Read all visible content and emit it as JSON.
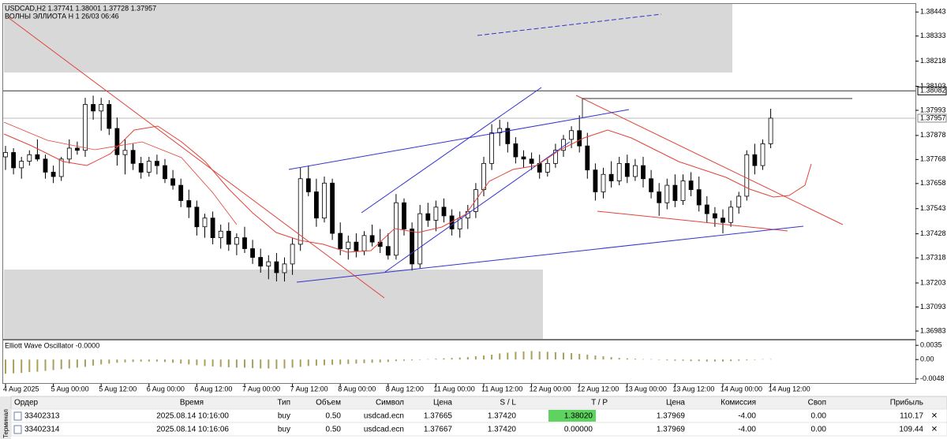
{
  "header": {
    "symbol_line": "USDCAD,H2  1.37741 1.38001 1.37728 1.37957",
    "indicator": "ВОЛНЫ ЭЛЛИОТА Н 1 26/03 06:46"
  },
  "price_axis": {
    "ylim": [
      1.36947,
      1.38469
    ],
    "ticks": [
      1.38443,
      1.38333,
      1.38218,
      1.38103,
      1.37993,
      1.37878,
      1.37768,
      1.37658,
      1.37543,
      1.37428,
      1.37318,
      1.37203,
      1.37093,
      1.36983
    ],
    "markers": [
      1.38082,
      1.37957
    ]
  },
  "time_axis": [
    "4 Aug 2025",
    "5 Aug 00:00",
    "5 Aug 12:00",
    "6 Aug 00:00",
    "6 Aug 12:00",
    "7 Aug 00:00",
    "7 Aug 12:00",
    "8 Aug 00:00",
    "8 Aug 12:00",
    "11 Aug 00:00",
    "11 Aug 12:00",
    "12 Aug 00:00",
    "12 Aug 12:00",
    "13 Aug 00:00",
    "13 Aug 12:00",
    "14 Aug 00:00",
    "14 Aug 12:00"
  ],
  "candles": [
    [
      1.3778,
      1.3783,
      1.3772,
      1.378
    ],
    [
      1.378,
      1.3782,
      1.377,
      1.3773
    ],
    [
      1.3773,
      1.3778,
      1.3768,
      1.3776
    ],
    [
      1.3776,
      1.3781,
      1.3774,
      1.3779
    ],
    [
      1.3779,
      1.3786,
      1.3776,
      1.3777
    ],
    [
      1.3777,
      1.3779,
      1.3768,
      1.3771
    ],
    [
      1.3771,
      1.3774,
      1.3766,
      1.3769
    ],
    [
      1.3769,
      1.3778,
      1.3767,
      1.3777
    ],
    [
      1.3777,
      1.3786,
      1.3775,
      1.3782
    ],
    [
      1.3782,
      1.3785,
      1.3779,
      1.3781
    ],
    [
      1.3781,
      1.3805,
      1.3778,
      1.3802
    ],
    [
      1.3802,
      1.3806,
      1.3795,
      1.3799
    ],
    [
      1.3799,
      1.3805,
      1.379,
      1.3802
    ],
    [
      1.3802,
      1.3804,
      1.3788,
      1.3791
    ],
    [
      1.3791,
      1.3796,
      1.3774,
      1.3779
    ],
    [
      1.3779,
      1.3786,
      1.377,
      1.3781
    ],
    [
      1.3781,
      1.3784,
      1.3772,
      1.3775
    ],
    [
      1.3775,
      1.3778,
      1.3768,
      1.3771
    ],
    [
      1.3771,
      1.3778,
      1.3769,
      1.3776
    ],
    [
      1.3776,
      1.3779,
      1.377,
      1.3774
    ],
    [
      1.3774,
      1.3777,
      1.3766,
      1.3768
    ],
    [
      1.3768,
      1.3772,
      1.3763,
      1.3765
    ],
    [
      1.3765,
      1.3768,
      1.3755,
      1.3758
    ],
    [
      1.3758,
      1.3763,
      1.375,
      1.3755
    ],
    [
      1.3755,
      1.3758,
      1.3742,
      1.3746
    ],
    [
      1.3746,
      1.3752,
      1.3741,
      1.375
    ],
    [
      1.375,
      1.3753,
      1.3738,
      1.3741
    ],
    [
      1.3741,
      1.3747,
      1.3736,
      1.3744
    ],
    [
      1.3744,
      1.3748,
      1.3735,
      1.3738
    ],
    [
      1.3738,
      1.3743,
      1.3733,
      1.3741
    ],
    [
      1.3741,
      1.3746,
      1.3734,
      1.3736
    ],
    [
      1.3736,
      1.374,
      1.3729,
      1.3732
    ],
    [
      1.3732,
      1.3736,
      1.3725,
      1.3728
    ],
    [
      1.3728,
      1.3733,
      1.3722,
      1.373
    ],
    [
      1.373,
      1.3734,
      1.3721,
      1.3725
    ],
    [
      1.3725,
      1.3732,
      1.3721,
      1.3729
    ],
    [
      1.3729,
      1.3741,
      1.3724,
      1.3738
    ],
    [
      1.3738,
      1.3773,
      1.3735,
      1.3768
    ],
    [
      1.3768,
      1.3774,
      1.376,
      1.3762
    ],
    [
      1.3762,
      1.3768,
      1.3746,
      1.375
    ],
    [
      1.375,
      1.3769,
      1.3748,
      1.3766
    ],
    [
      1.3766,
      1.3768,
      1.374,
      1.3743
    ],
    [
      1.3743,
      1.3748,
      1.3733,
      1.3736
    ],
    [
      1.3736,
      1.3742,
      1.3731,
      1.3739
    ],
    [
      1.3739,
      1.3743,
      1.3732,
      1.3735
    ],
    [
      1.3735,
      1.3744,
      1.3733,
      1.3742
    ],
    [
      1.3742,
      1.3747,
      1.3737,
      1.3739
    ],
    [
      1.3739,
      1.3745,
      1.3734,
      1.3737
    ],
    [
      1.3737,
      1.3743,
      1.3731,
      1.3733
    ],
    [
      1.3733,
      1.3761,
      1.3731,
      1.3757
    ],
    [
      1.3757,
      1.3759,
      1.3742,
      1.3745
    ],
    [
      1.3745,
      1.3748,
      1.3726,
      1.3729
    ],
    [
      1.3729,
      1.3756,
      1.3727,
      1.3752
    ],
    [
      1.3752,
      1.3757,
      1.3746,
      1.3749
    ],
    [
      1.3749,
      1.3758,
      1.3744,
      1.3755
    ],
    [
      1.3755,
      1.3759,
      1.3748,
      1.3751
    ],
    [
      1.3751,
      1.3754,
      1.3742,
      1.3745
    ],
    [
      1.3745,
      1.3753,
      1.3741,
      1.375
    ],
    [
      1.375,
      1.3756,
      1.3745,
      1.3753
    ],
    [
      1.3753,
      1.3766,
      1.375,
      1.3763
    ],
    [
      1.3763,
      1.3778,
      1.376,
      1.3775
    ],
    [
      1.3775,
      1.3793,
      1.3772,
      1.3789
    ],
    [
      1.3789,
      1.3795,
      1.3783,
      1.3791
    ],
    [
      1.3791,
      1.3794,
      1.378,
      1.3784
    ],
    [
      1.3784,
      1.3787,
      1.3775,
      1.3778
    ],
    [
      1.3778,
      1.3781,
      1.3773,
      1.3777
    ],
    [
      1.3777,
      1.378,
      1.3772,
      1.3775
    ],
    [
      1.3775,
      1.3779,
      1.3768,
      1.3771
    ],
    [
      1.3771,
      1.3777,
      1.3769,
      1.3775
    ],
    [
      1.3775,
      1.3784,
      1.3773,
      1.3781
    ],
    [
      1.3781,
      1.3788,
      1.3778,
      1.3786
    ],
    [
      1.3786,
      1.3792,
      1.3782,
      1.379
    ],
    [
      1.379,
      1.3797,
      1.378,
      1.3783
    ],
    [
      1.3783,
      1.3789,
      1.3768,
      1.3772
    ],
    [
      1.3772,
      1.3775,
      1.3758,
      1.3762
    ],
    [
      1.3762,
      1.3773,
      1.3759,
      1.377
    ],
    [
      1.377,
      1.3776,
      1.3764,
      1.3767
    ],
    [
      1.3767,
      1.3778,
      1.3765,
      1.3775
    ],
    [
      1.3775,
      1.3779,
      1.3766,
      1.3769
    ],
    [
      1.3769,
      1.3777,
      1.3767,
      1.3774
    ],
    [
      1.3774,
      1.3778,
      1.3764,
      1.3768
    ],
    [
      1.3768,
      1.3772,
      1.3759,
      1.3762
    ],
    [
      1.3762,
      1.3766,
      1.3751,
      1.3757
    ],
    [
      1.3757,
      1.3768,
      1.3754,
      1.3765
    ],
    [
      1.3765,
      1.377,
      1.3755,
      1.3758
    ],
    [
      1.3758,
      1.377,
      1.3756,
      1.3767
    ],
    [
      1.3767,
      1.3771,
      1.376,
      1.3763
    ],
    [
      1.3763,
      1.3769,
      1.3753,
      1.3756
    ],
    [
      1.3756,
      1.376,
      1.3748,
      1.3752
    ],
    [
      1.3752,
      1.3755,
      1.3746,
      1.375
    ],
    [
      1.375,
      1.3754,
      1.3743,
      1.3748
    ],
    [
      1.3748,
      1.3758,
      1.3746,
      1.3755
    ],
    [
      1.3755,
      1.3762,
      1.3752,
      1.376
    ],
    [
      1.376,
      1.3781,
      1.3758,
      1.3779
    ],
    [
      1.3779,
      1.3784,
      1.377,
      1.3774
    ],
    [
      1.3774,
      1.3786,
      1.3772,
      1.3784
    ],
    [
      1.3784,
      1.38,
      1.3782,
      1.37957
    ]
  ],
  "oscillator": {
    "label": "Elliott Wave Oscillator -0.0000",
    "ylim": [
      -0.0058,
      0.0047
    ],
    "ticks": [
      0.0035,
      {
        "value": 0,
        "label": "0.00"
      },
      -0.0048
    ],
    "values": [
      -0.0035,
      -0.0034,
      -0.0033,
      -0.0031,
      -0.003,
      -0.0028,
      -0.0026,
      -0.0024,
      -0.0022,
      -0.002,
      -0.0018,
      -0.0015,
      -0.0012,
      -0.001,
      -0.0008,
      -0.0007,
      -0.0006,
      -0.0005,
      -0.0005,
      -0.0005,
      -0.0006,
      -0.0008,
      -0.001,
      -0.0012,
      -0.0014,
      -0.0016,
      -0.0017,
      -0.0018,
      -0.0019,
      -0.002,
      -0.002,
      -0.0021,
      -0.0022,
      -0.0022,
      -0.0023,
      -0.0022,
      -0.002,
      -0.0018,
      -0.0016,
      -0.0015,
      -0.0014,
      -0.0013,
      -0.0012,
      -0.0011,
      -0.001,
      -0.0009,
      -0.0008,
      -0.0007,
      -0.0006,
      -0.0004,
      -0.0003,
      -0.0002,
      -0.0001,
      0.0001,
      0.0002,
      0.0003,
      0.0004,
      0.0005,
      0.0006,
      0.0008,
      0.001,
      0.0012,
      0.0015,
      0.0017,
      0.0019,
      0.002,
      0.0021,
      0.002,
      0.0019,
      0.0018,
      0.0017,
      0.0016,
      0.0014,
      0.0012,
      0.001,
      0.0008,
      0.0006,
      0.0004,
      0.0003,
      0.0002,
      0.0001,
      0,
      -0.0001,
      -0.0002,
      -0.0003,
      -0.0003,
      -0.0004,
      -0.0004,
      -0.0005,
      -0.0005,
      -0.0005,
      -0.0004,
      -0.0003,
      -0.0002,
      -0.0001,
      0,
      0.0001
    ]
  },
  "terminal_tab": "Терминал",
  "table": {
    "columns": [
      "Ордер",
      "Время",
      "Тип",
      "Объем",
      "Символ",
      "Цена",
      "S / L",
      "T / P",
      "Цена",
      "Комиссия",
      "Своп",
      "Прибыль"
    ],
    "rows": [
      [
        "33402313",
        "2025.08.14 10:16:00",
        "buy",
        "0.50",
        "usdcad.ecn",
        "1.37665",
        "1.37420",
        "1.38020",
        "1.37969",
        "-4.00",
        "0.00",
        "110.17"
      ],
      [
        "33402314",
        "2025.08.14 10:16:06",
        "buy",
        "0.50",
        "usdcad.ecn",
        "1.37667",
        "1.37420",
        "0.00000",
        "1.37969",
        "-4.00",
        "0.00",
        "109.44"
      ]
    ]
  }
}
